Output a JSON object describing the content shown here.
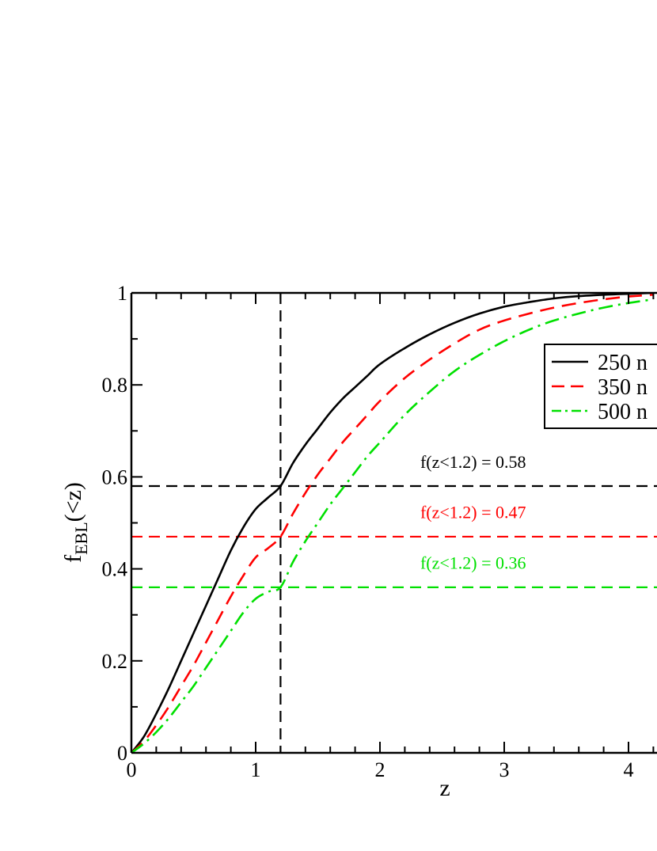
{
  "chart_data": {
    "type": "line",
    "xlabel": "z",
    "ylabel": {
      "main": "f",
      "sub": "EBL",
      "rest": "(<z)"
    },
    "xlim": [
      0,
      4.2
    ],
    "ylim": [
      0,
      1
    ],
    "xticks": [
      0,
      1,
      2,
      3,
      4
    ],
    "xtick_labels": [
      "0",
      "1",
      "2",
      "3",
      "4"
    ],
    "yticks": [
      0,
      0.2,
      0.4,
      0.6,
      0.8,
      1
    ],
    "ytick_labels": [
      "0",
      "0.2",
      "0.4",
      "0.6",
      "0.8",
      "1"
    ],
    "grid": false,
    "legend_position": "upper-right",
    "x": [
      0,
      0.1,
      0.2,
      0.3,
      0.4,
      0.5,
      0.6,
      0.7,
      0.8,
      0.9,
      1.0,
      1.1,
      1.2,
      1.3,
      1.4,
      1.5,
      1.6,
      1.7,
      1.8,
      1.9,
      2.0,
      2.2,
      2.4,
      2.6,
      2.8,
      3.0,
      3.2,
      3.4,
      3.6,
      3.8,
      4.0,
      4.2
    ],
    "series": [
      {
        "name": "250 n",
        "color": "#000000",
        "style": "solid",
        "values": [
          0,
          0.035,
          0.085,
          0.14,
          0.2,
          0.26,
          0.32,
          0.38,
          0.44,
          0.49,
          0.53,
          0.555,
          0.58,
          0.63,
          0.67,
          0.705,
          0.74,
          0.77,
          0.795,
          0.82,
          0.845,
          0.88,
          0.91,
          0.935,
          0.955,
          0.97,
          0.98,
          0.988,
          0.993,
          0.996,
          0.998,
          1.0
        ]
      },
      {
        "name": "350 n",
        "color": "#ff0000",
        "style": "dashed",
        "values": [
          0,
          0.025,
          0.06,
          0.1,
          0.145,
          0.19,
          0.24,
          0.29,
          0.34,
          0.385,
          0.425,
          0.445,
          0.47,
          0.52,
          0.565,
          0.605,
          0.64,
          0.675,
          0.705,
          0.735,
          0.765,
          0.815,
          0.855,
          0.89,
          0.92,
          0.94,
          0.955,
          0.968,
          0.978,
          0.986,
          0.992,
          0.996
        ]
      },
      {
        "name": "500 n",
        "color": "#00e000",
        "style": "dashdot",
        "values": [
          0,
          0.02,
          0.045,
          0.075,
          0.11,
          0.145,
          0.185,
          0.225,
          0.265,
          0.305,
          0.335,
          0.35,
          0.36,
          0.415,
          0.46,
          0.5,
          0.54,
          0.575,
          0.61,
          0.645,
          0.675,
          0.735,
          0.785,
          0.83,
          0.865,
          0.895,
          0.92,
          0.94,
          0.955,
          0.968,
          0.978,
          0.986
        ]
      }
    ],
    "reference_lines": [
      {
        "orientation": "vertical",
        "value": 1.2,
        "color": "#000000",
        "style": "dashed"
      },
      {
        "orientation": "horizontal",
        "value": 0.58,
        "color": "#000000",
        "style": "dashed"
      },
      {
        "orientation": "horizontal",
        "value": 0.47,
        "color": "#ff0000",
        "style": "dashed"
      },
      {
        "orientation": "horizontal",
        "value": 0.36,
        "color": "#00e000",
        "style": "dashed"
      }
    ],
    "annotations": [
      {
        "text": "f(z<1.2) = 0.58",
        "color": "#000000",
        "x": 2.75,
        "y": 0.62
      },
      {
        "text": "f(z<1.2) = 0.47",
        "color": "#ff0000",
        "x": 2.75,
        "y": 0.51
      },
      {
        "text": "f(z<1.2) = 0.36",
        "color": "#00e000",
        "x": 2.75,
        "y": 0.4
      }
    ]
  }
}
